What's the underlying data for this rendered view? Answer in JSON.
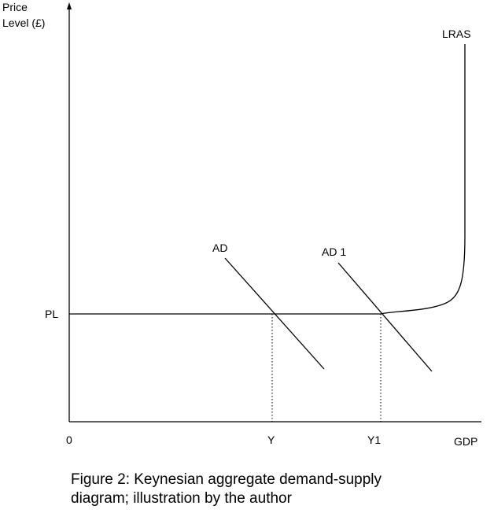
{
  "axes": {
    "y_label_line1": "Price",
    "y_label_line2": "Level (£)",
    "x_label": "GDP",
    "origin_label": "0"
  },
  "curves": {
    "lras": "LRAS",
    "ad": "AD",
    "ad1": "AD 1"
  },
  "levels": {
    "pl": "PL",
    "y": "Y",
    "y1": "Y1"
  },
  "caption": {
    "line1": "Figure 2: Keynesian aggregate demand-supply",
    "line2": "diagram; illustration by the author"
  }
}
